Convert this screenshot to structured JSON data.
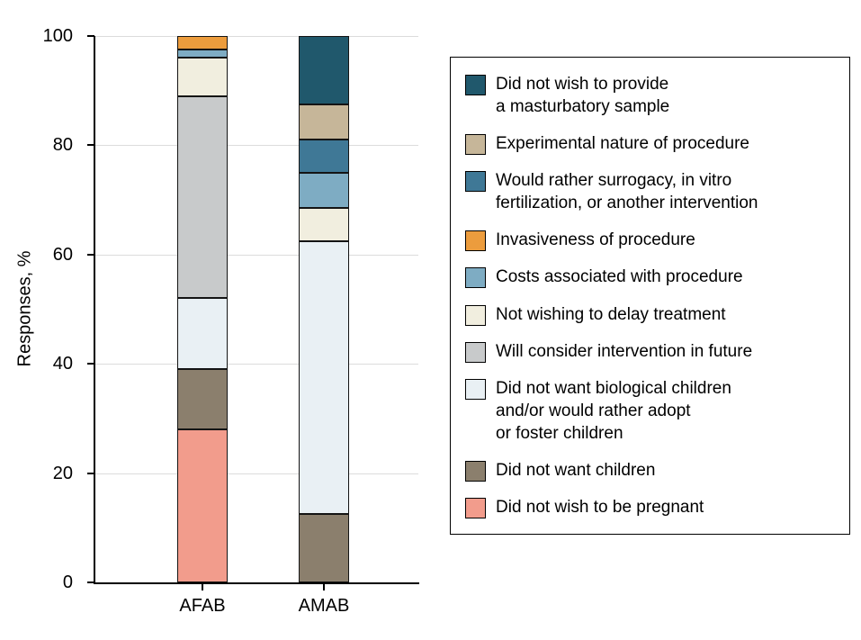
{
  "chart_data": {
    "type": "bar",
    "stacked": true,
    "title": "",
    "xlabel": "",
    "ylabel": "Responses, %",
    "ylim": [
      0,
      100
    ],
    "yticks": [
      0,
      20,
      40,
      60,
      80,
      100
    ],
    "grid": true,
    "legend_position": "right",
    "categories": [
      "AFAB",
      "AMAB"
    ],
    "series": [
      {
        "name": "Did not wish to be pregnant",
        "color": "#F29C8C",
        "values": [
          28,
          0
        ]
      },
      {
        "name": "Did not want children",
        "color": "#8B7F6D",
        "values": [
          11,
          12.5
        ]
      },
      {
        "name": "Did not want biological children and/or would rather adopt or foster children",
        "color": "#E9F0F4",
        "values": [
          13,
          50
        ]
      },
      {
        "name": "Will consider intervention in future",
        "color": "#C8CACB",
        "values": [
          37,
          0
        ]
      },
      {
        "name": "Not wishing to delay treatment",
        "color": "#F1EEDF",
        "values": [
          7,
          6
        ]
      },
      {
        "name": "Costs associated with procedure",
        "color": "#7EACC3",
        "values": [
          1.5,
          6.5
        ]
      },
      {
        "name": "Invasiveness of procedure",
        "color": "#EC9C3D",
        "values": [
          2.5,
          0
        ]
      },
      {
        "name": "Would rather surrogacy, in vitro fertilization, or another intervention",
        "color": "#3F7896",
        "values": [
          0,
          6
        ]
      },
      {
        "name": "Experimental nature of procedure",
        "color": "#C6B699",
        "values": [
          0,
          6.5
        ]
      },
      {
        "name": "Did not wish to provide a masturbatory sample",
        "color": "#20586C",
        "values": [
          0,
          12.5
        ]
      }
    ]
  },
  "legend": {
    "items": [
      {
        "color": "#20586C",
        "lines": [
          "Did not wish to provide",
          "a masturbatory sample"
        ]
      },
      {
        "color": "#C6B699",
        "lines": [
          "Experimental nature of procedure"
        ]
      },
      {
        "color": "#3F7896",
        "lines": [
          "Would rather surrogacy, in vitro",
          "fertilization, or another intervention"
        ]
      },
      {
        "color": "#EC9C3D",
        "lines": [
          "Invasiveness of procedure"
        ]
      },
      {
        "color": "#7EACC3",
        "lines": [
          "Costs associated with procedure"
        ]
      },
      {
        "color": "#F1EEDF",
        "lines": [
          "Not wishing to delay treatment"
        ]
      },
      {
        "color": "#C8CACB",
        "lines": [
          "Will consider intervention in future"
        ]
      },
      {
        "color": "#E9F0F4",
        "lines": [
          "Did not want biological children",
          "and/or would rather adopt",
          "or foster children"
        ]
      },
      {
        "color": "#8B7F6D",
        "lines": [
          "Did not want children"
        ]
      },
      {
        "color": "#F29C8C",
        "lines": [
          "Did not wish to be pregnant"
        ]
      }
    ]
  }
}
